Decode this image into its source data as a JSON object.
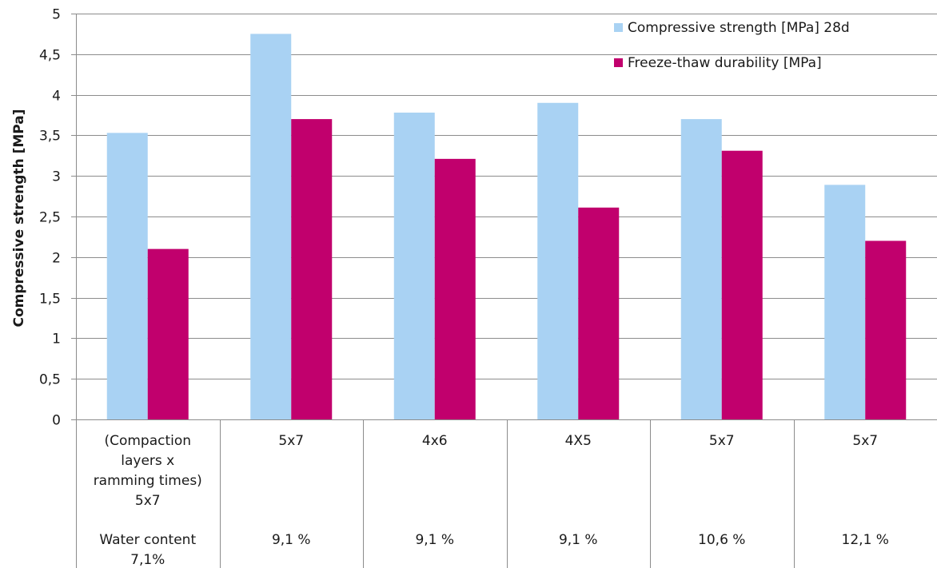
{
  "chart_data": {
    "type": "bar",
    "title": "",
    "xlabel": "",
    "ylabel": "Compressive strength [MPa]",
    "ylim": [
      0,
      5
    ],
    "y_ticks": [
      0,
      0.5,
      1,
      1.5,
      2,
      2.5,
      3,
      3.5,
      4,
      4.5,
      5
    ],
    "y_tick_labels": [
      "0",
      "0,5",
      "1",
      "1,5",
      "2",
      "2,5",
      "3",
      "3,5",
      "4",
      "4,5",
      "5"
    ],
    "grid": true,
    "legend_position": "top-right",
    "categories": [
      {
        "lines": [
          "(Compaction",
          "layers x",
          "ramming times)",
          "5x7"
        ],
        "water_lines": [
          "Water content",
          "7,1%"
        ]
      },
      {
        "lines": [
          "5x7"
        ],
        "water_lines": [
          "9,1 %"
        ]
      },
      {
        "lines": [
          "4x6"
        ],
        "water_lines": [
          "9,1 %"
        ]
      },
      {
        "lines": [
          "4X5"
        ],
        "water_lines": [
          "9,1 %"
        ]
      },
      {
        "lines": [
          "5x7"
        ],
        "water_lines": [
          "10,6 %"
        ]
      },
      {
        "lines": [
          "5x7"
        ],
        "water_lines": [
          "12,1 %"
        ]
      }
    ],
    "series": [
      {
        "name": "Compressive strength [MPa] 28d",
        "color": "#a9d2f3",
        "values": [
          3.53,
          4.75,
          3.78,
          3.9,
          3.7,
          2.89
        ]
      },
      {
        "name": "Freeze-thaw durability [MPa]",
        "color": "#c1006d",
        "values": [
          2.1,
          3.7,
          3.21,
          2.61,
          3.31,
          2.2
        ]
      }
    ]
  }
}
